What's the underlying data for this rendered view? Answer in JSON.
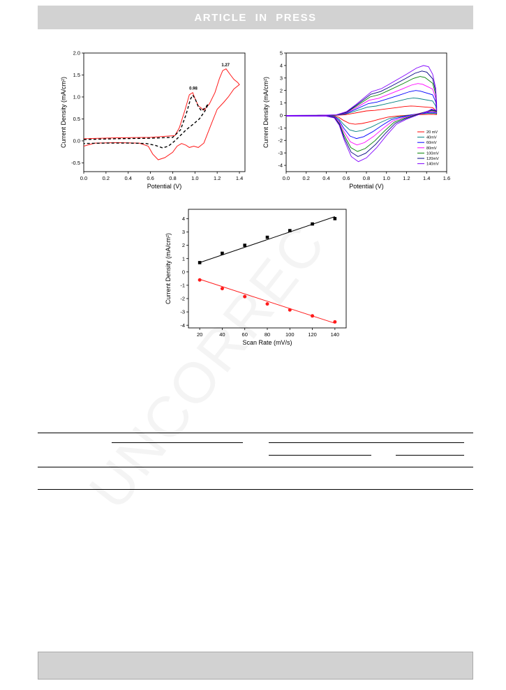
{
  "header": {
    "title": "ARTICLE IN PRESS"
  },
  "watermark": "UNCORREC",
  "colors": {
    "header_bar": "#d2d2d2",
    "red": "#ff1a1a",
    "black": "#000000"
  },
  "chart_data": [
    {
      "type": "line",
      "xlabel": "Potential (V)",
      "ylabel": "Current Density (mA/cm²)",
      "xlim": [
        0.0,
        1.45
      ],
      "ylim": [
        -0.7,
        2.0
      ],
      "xticks": [
        "0.0",
        "0.2",
        "0.4",
        "0.6",
        "0.8",
        "1.0",
        "1.2",
        "1.4"
      ],
      "yticks": [
        "2.0",
        "1.5",
        "1.0",
        "0.5",
        "0.0",
        "-0.5"
      ],
      "annotations": [
        {
          "text": "0.98",
          "x": 0.98,
          "y": 1.17
        },
        {
          "text": "1.27",
          "x": 1.27,
          "y": 1.7
        }
      ],
      "series": [
        {
          "style": "solid",
          "color": "#ff1a1a",
          "points": [
            [
              0.0,
              -0.12
            ],
            [
              0.1,
              -0.05
            ],
            [
              0.3,
              -0.04
            ],
            [
              0.5,
              -0.05
            ],
            [
              0.58,
              -0.12
            ],
            [
              0.62,
              -0.3
            ],
            [
              0.67,
              -0.43
            ],
            [
              0.73,
              -0.38
            ],
            [
              0.8,
              -0.26
            ],
            [
              0.84,
              -0.12
            ],
            [
              0.88,
              -0.06
            ],
            [
              0.92,
              -0.1
            ],
            [
              0.95,
              -0.15
            ],
            [
              0.99,
              -0.12
            ],
            [
              1.03,
              -0.15
            ],
            [
              1.08,
              -0.05
            ],
            [
              1.15,
              0.4
            ],
            [
              1.2,
              0.72
            ],
            [
              1.26,
              0.88
            ],
            [
              1.3,
              1.0
            ],
            [
              1.35,
              1.18
            ],
            [
              1.4,
              1.28
            ],
            [
              1.385,
              1.33
            ],
            [
              1.35,
              1.4
            ],
            [
              1.32,
              1.5
            ],
            [
              1.28,
              1.64
            ],
            [
              1.25,
              1.6
            ],
            [
              1.22,
              1.42
            ],
            [
              1.18,
              1.1
            ],
            [
              1.13,
              0.84
            ],
            [
              1.08,
              0.7
            ],
            [
              1.03,
              0.8
            ],
            [
              1.0,
              0.97
            ],
            [
              0.98,
              1.1
            ],
            [
              0.95,
              1.05
            ],
            [
              0.91,
              0.7
            ],
            [
              0.86,
              0.3
            ],
            [
              0.82,
              0.12
            ],
            [
              0.6,
              0.08
            ],
            [
              0.3,
              0.07
            ],
            [
              0.0,
              0.05
            ]
          ]
        },
        {
          "style": "dashed",
          "color": "#000000",
          "points": [
            [
              0.0,
              0.03
            ],
            [
              0.3,
              0.05
            ],
            [
              0.6,
              0.06
            ],
            [
              0.8,
              0.08
            ],
            [
              0.87,
              0.25
            ],
            [
              0.92,
              0.6
            ],
            [
              0.96,
              0.95
            ],
            [
              0.98,
              1.04
            ],
            [
              1.0,
              0.97
            ],
            [
              1.03,
              0.78
            ],
            [
              1.06,
              0.68
            ],
            [
              1.1,
              0.78
            ],
            [
              1.12,
              0.84
            ],
            [
              1.09,
              0.68
            ],
            [
              1.04,
              0.5
            ],
            [
              0.98,
              0.37
            ],
            [
              0.92,
              0.25
            ],
            [
              0.86,
              0.1
            ],
            [
              0.81,
              -0.02
            ],
            [
              0.76,
              -0.12
            ],
            [
              0.71,
              -0.16
            ],
            [
              0.64,
              -0.1
            ],
            [
              0.56,
              -0.06
            ],
            [
              0.4,
              -0.05
            ],
            [
              0.2,
              -0.05
            ],
            [
              0.0,
              -0.06
            ]
          ]
        }
      ]
    },
    {
      "type": "line",
      "xlabel": "Potential (V)",
      "ylabel": "Current Density (mA/cm²)",
      "xlim": [
        0.0,
        1.6
      ],
      "ylim": [
        -4.5,
        5.0
      ],
      "xticks": [
        "0.0",
        "0.2",
        "0.4",
        "0.6",
        "0.8",
        "1.0",
        "1.2",
        "1.4",
        "1.6"
      ],
      "yticks": [
        "5",
        "4",
        "3",
        "2",
        "1",
        "0",
        "-1",
        "-2",
        "-3",
        "-4"
      ],
      "legend": {
        "position": "bottom-right"
      },
      "series": [
        {
          "name": "20 mV",
          "color": "#ff0000",
          "scale": 0.19
        },
        {
          "name": "40mV",
          "color": "#008080",
          "scale": 0.35
        },
        {
          "name": "60mV",
          "color": "#0000ff",
          "scale": 0.5
        },
        {
          "name": "80mV",
          "color": "#ff00ff",
          "scale": 0.64
        },
        {
          "name": "100mV",
          "color": "#008000",
          "scale": 0.78
        },
        {
          "name": "120mV",
          "color": "#000080",
          "scale": 0.89
        },
        {
          "name": "140mV",
          "color": "#8000ff",
          "scale": 1.0
        }
      ],
      "shape_upper": [
        [
          0.0,
          0.0
        ],
        [
          0.3,
          0.01
        ],
        [
          0.5,
          0.05
        ],
        [
          0.6,
          0.3
        ],
        [
          0.7,
          0.9
        ],
        [
          0.85,
          1.9
        ],
        [
          0.95,
          2.15
        ],
        [
          1.05,
          2.6
        ],
        [
          1.2,
          3.3
        ],
        [
          1.3,
          3.8
        ],
        [
          1.37,
          4.0
        ],
        [
          1.42,
          3.9
        ],
        [
          1.46,
          3.3
        ],
        [
          1.49,
          2.2
        ],
        [
          1.5,
          1.0
        ],
        [
          1.5,
          0.4
        ]
      ],
      "shape_lower": [
        [
          1.5,
          0.4
        ],
        [
          1.45,
          0.5
        ],
        [
          1.4,
          0.3
        ],
        [
          1.3,
          0.0
        ],
        [
          1.2,
          -0.3
        ],
        [
          1.1,
          -0.7
        ],
        [
          1.0,
          -1.6
        ],
        [
          0.9,
          -2.6
        ],
        [
          0.8,
          -3.4
        ],
        [
          0.72,
          -3.7
        ],
        [
          0.65,
          -3.3
        ],
        [
          0.58,
          -2.0
        ],
        [
          0.53,
          -0.8
        ],
        [
          0.48,
          -0.2
        ],
        [
          0.4,
          -0.06
        ],
        [
          0.0,
          -0.05
        ]
      ]
    },
    {
      "type": "scatter",
      "xlabel": "Scan Rate (mV/s)",
      "ylabel": "Current Density (mA/cm²)",
      "xlim": [
        10,
        150
      ],
      "ylim": [
        -4.2,
        4.7
      ],
      "xticks": [
        "20",
        "40",
        "60",
        "80",
        "100",
        "120",
        "140"
      ],
      "yticks": [
        "4",
        "3",
        "2",
        "1",
        "0",
        "-1",
        "-2",
        "-3",
        "-4"
      ],
      "x": [
        20,
        40,
        60,
        80,
        100,
        120,
        140
      ],
      "series": [
        {
          "color": "#000000",
          "marker": "square",
          "values": [
            0.7,
            1.4,
            2.0,
            2.6,
            3.1,
            3.6,
            4.0
          ],
          "fit": [
            [
              20,
              0.7
            ],
            [
              140,
              4.15
            ]
          ]
        },
        {
          "color": "#ff1a1a",
          "marker": "circle",
          "values": [
            -0.6,
            -1.25,
            -1.85,
            -2.4,
            -2.85,
            -3.3,
            -3.75
          ],
          "fit": [
            [
              20,
              -0.55
            ],
            [
              140,
              -3.85
            ]
          ]
        }
      ]
    }
  ]
}
